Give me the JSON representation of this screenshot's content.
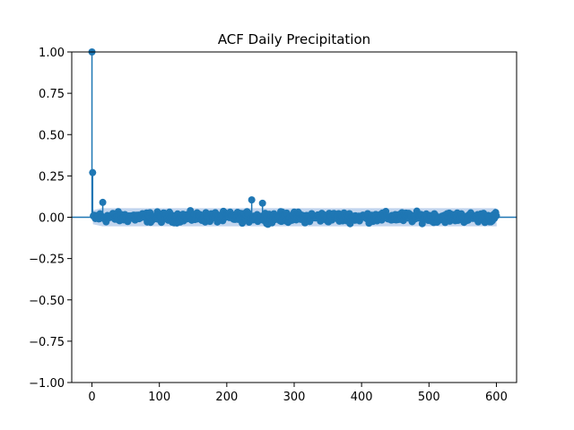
{
  "chart_data": {
    "type": "scatter",
    "title": "ACF Daily Precipitation",
    "xlabel": "",
    "ylabel": "",
    "xlim": [
      -30,
      630
    ],
    "ylim": [
      -1.0,
      1.0
    ],
    "x_ticks": [
      0,
      100,
      200,
      300,
      400,
      500,
      600
    ],
    "x_tick_labels": [
      "0",
      "100",
      "200",
      "300",
      "400",
      "500",
      "600"
    ],
    "y_ticks": [
      1.0,
      0.75,
      0.5,
      0.25,
      0.0,
      -0.25,
      -0.5,
      -0.75,
      -1.0
    ],
    "y_tick_labels": [
      "1.00",
      "0.75",
      "0.50",
      "0.25",
      "0.00",
      "−0.25",
      "−0.50",
      "−0.75",
      "−1.00"
    ],
    "grid": false,
    "confidence_band": 0.055,
    "colors": {
      "marker": "#1f77b4",
      "band": "#aec7e8"
    },
    "max_lag": 600,
    "highlighted_values": {
      "0": 1.0,
      "1": 0.27,
      "16": 0.09,
      "237": 0.105,
      "253": 0.085
    },
    "residual_amplitude": 0.045,
    "note": "lags 2-600 otherwise fluctuate roughly within +/-0.06"
  }
}
